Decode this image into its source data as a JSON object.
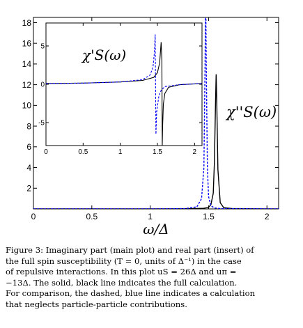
{
  "chart_data": [
    {
      "role": "main",
      "type": "line",
      "xlabel": "ω/Δ",
      "ylabel": "",
      "xlim": [
        0,
        2.1
      ],
      "ylim": [
        0,
        18.5
      ],
      "xticks": [
        0,
        0.5,
        1,
        1.5,
        2
      ],
      "xtick_labels": [
        "0",
        "0.5",
        "1",
        "1.5",
        "2"
      ],
      "yticks": [
        2,
        4,
        6,
        8,
        10,
        12,
        14,
        16,
        18
      ],
      "ytick_labels": [
        "2",
        "4",
        "6",
        "8",
        "10",
        "12",
        "14",
        "16",
        "18"
      ],
      "annotation": "χ''S(ω)",
      "grid": false,
      "series": [
        {
          "style": "solid",
          "color": "#000000",
          "x": [
            0,
            0.5,
            1.0,
            1.3,
            1.45,
            1.5,
            1.52,
            1.54,
            1.55,
            1.56,
            1.565,
            1.57,
            1.58,
            1.6,
            1.63,
            1.7,
            1.9,
            2.1
          ],
          "y": [
            0,
            0,
            0,
            0.02,
            0.05,
            0.15,
            0.4,
            1.5,
            4.5,
            10.5,
            13.0,
            10.5,
            3.8,
            0.6,
            0.12,
            0.04,
            0.01,
            0.0
          ]
        },
        {
          "style": "dashed",
          "color": "#0000ff",
          "x": [
            0,
            0.5,
            1.0,
            1.3,
            1.4,
            1.44,
            1.46,
            1.47,
            1.475,
            1.48,
            1.49,
            1.5,
            1.52,
            1.55,
            1.6,
            1.9,
            2.1
          ],
          "y": [
            0,
            0,
            0,
            0.03,
            0.2,
            1.0,
            4.0,
            14.0,
            22.0,
            14.0,
            4.0,
            1.2,
            0.3,
            0.1,
            0.03,
            0.01,
            0.0
          ]
        }
      ]
    },
    {
      "role": "inset",
      "type": "line",
      "xlabel": "",
      "ylabel": "",
      "xlim": [
        0,
        2.1
      ],
      "ylim": [
        -8,
        8
      ],
      "xticks": [
        0,
        0.5,
        1,
        1.5,
        2
      ],
      "xtick_labels": [
        "0",
        "0.5",
        "1",
        "1.5",
        "2"
      ],
      "yticks": [
        -5,
        0,
        5
      ],
      "ytick_labels": [
        "-5",
        "0",
        "5"
      ],
      "annotation": "χ'S(ω)",
      "grid": false,
      "series": [
        {
          "style": "solid",
          "color": "#000000",
          "x": [
            0,
            0.5,
            1.0,
            1.3,
            1.45,
            1.5,
            1.53,
            1.55,
            1.56,
            1.565,
            1.57,
            1.58,
            1.6,
            1.65,
            1.8,
            2.1
          ],
          "y": [
            0.1,
            0.15,
            0.3,
            0.5,
            0.9,
            1.5,
            2.8,
            5.5,
            3.0,
            -8.0,
            -5.5,
            -2.6,
            -1.2,
            -0.4,
            -0.05,
            0.1
          ]
        },
        {
          "style": "dashed",
          "color": "#0000ff",
          "x": [
            0,
            0.5,
            1.0,
            1.3,
            1.4,
            1.44,
            1.46,
            1.47,
            1.475,
            1.48,
            1.49,
            1.52,
            1.55,
            1.6,
            1.8,
            2.1
          ],
          "y": [
            0.1,
            0.15,
            0.3,
            0.6,
            1.2,
            2.2,
            4.2,
            6.5,
            0.0,
            -6.5,
            -3.6,
            -1.5,
            -0.8,
            -0.3,
            -0.05,
            0.1
          ]
        }
      ]
    }
  ],
  "caption_lines": [
    "Figure 3: Imaginary part (main plot) and real part (insert) of",
    "the full spin susceptibility (T = 0, units of Δ⁻¹) in the case",
    "of repulsive interactions. In this plot uS = 26Δ and uπ =",
    "−13Δ. The solid, black line indicates the full calculation.",
    "For comparison, the dashed, blue line indicates a calculation",
    "that neglects particle-particle contributions."
  ]
}
